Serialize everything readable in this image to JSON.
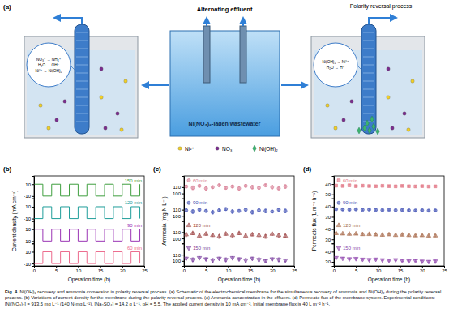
{
  "figure": {
    "caption_label": "Fig. 4.",
    "caption": "Ni(OH)₂ recovery and ammonia conversion in polarity reversal process. (a) Schematic of the electrochemical membrane for the simultaneous recovery of ammonia and Ni(OH)₂ during the polarity reversal process. (b) Variations of current density for the membrane during the polarity reversal process. (c) Ammonia concentration in the effluent. (d) Permeate flux of the membrane system. Experimental conditions: [Ni(NO₃)₂] = 913.5 mg L⁻¹ (140 N-mg L⁻¹), [Na₂SO₄] = 14.2 g L⁻¹, pH = 5.5. The applied current density is 10 mA cm⁻². Initial membrane flux is 40 L m⁻² h⁻¹."
  },
  "panel_a": {
    "label": "(a)",
    "center_title": "Alternating effluent",
    "tank_label": "Ni(NO₃)₂-laden wastewater",
    "right_title": "Polarity reversal process",
    "left_callout": [
      "NO₃⁻ → NH₄⁺",
      "H₂O → OH⁻",
      "Ni²⁺ → Ni(OH)₂"
    ],
    "right_callout": [
      "Ni(OH)₂ → Ni²⁺",
      "H₂O → H⁺"
    ],
    "legend": [
      "Ni²⁺",
      "NO₃⁻",
      "Ni(OH)₂"
    ]
  },
  "chart_data": [
    {
      "type": "line",
      "label": "(b)",
      "xlabel": "Operation time (h)",
      "ylabel": "Current density (mA cm⁻²)",
      "xlim": [
        0,
        25
      ],
      "xticks": [
        0,
        5,
        10,
        15,
        20,
        25
      ],
      "line_style": "step",
      "subplots": [
        {
          "ylim": [
            -14,
            24
          ],
          "yticks": [
            -10,
            10
          ],
          "series": [
            {
              "name": "150 min",
              "color": "#3f9f3f",
              "x": [
                0,
                2,
                4,
                6,
                8,
                10,
                12,
                14,
                16,
                18,
                20,
                22,
                24
              ],
              "values": [
                10,
                -10,
                10,
                -10,
                10,
                -10,
                10,
                -10,
                10,
                -10,
                10,
                -10,
                10
              ]
            }
          ]
        },
        {
          "ylim": [
            -14,
            24
          ],
          "yticks": [
            -10,
            10
          ],
          "series": [
            {
              "name": "120 min",
              "color": "#1f9e9a",
              "x": [
                0,
                2,
                4,
                6,
                8,
                10,
                12,
                14,
                16,
                18,
                20,
                22,
                24
              ],
              "values": [
                -10,
                10,
                -10,
                10,
                -10,
                10,
                -10,
                10,
                -10,
                10,
                -10,
                10,
                -10
              ]
            }
          ]
        },
        {
          "ylim": [
            -14,
            24
          ],
          "yticks": [
            -10,
            10
          ],
          "series": [
            {
              "name": "90 min",
              "color": "#9b35b5",
              "x": [
                0,
                2,
                4,
                6,
                8,
                10,
                12,
                14,
                16,
                18,
                20,
                22,
                24
              ],
              "values": [
                10,
                -10,
                10,
                -10,
                10,
                -10,
                10,
                -10,
                10,
                -10,
                10,
                -10,
                10
              ]
            }
          ]
        },
        {
          "ylim": [
            -14,
            24
          ],
          "yticks": [
            -10,
            10
          ],
          "series": [
            {
              "name": "60 min",
              "color": "#ec6a8c",
              "x": [
                0,
                2,
                4,
                6,
                8,
                10,
                12,
                14,
                16,
                18,
                20,
                22,
                24
              ],
              "values": [
                -10,
                10,
                -10,
                10,
                -10,
                10,
                -10,
                10,
                -10,
                10,
                -10,
                10,
                -10
              ]
            }
          ]
        }
      ]
    },
    {
      "type": "scatter",
      "label": "(c)",
      "xlabel": "Operation time (h)",
      "ylabel": "Ammonia (mg-N L⁻¹)",
      "xlim": [
        0,
        25
      ],
      "xticks": [
        0,
        5,
        10,
        15,
        20,
        25
      ],
      "subplots": [
        {
          "ylim": [
            92,
            128
          ],
          "yticks": [
            100,
            110
          ],
          "series": [
            {
              "name": "60 min",
              "color": "#d77a92",
              "marker": "circle",
              "x": [
                0.5,
                2,
                3.5,
                5,
                6.5,
                8,
                9.5,
                11,
                12.5,
                14,
                15.5,
                17,
                18.5,
                20,
                21.5,
                23
              ],
              "values": [
                111,
                109,
                112,
                108,
                110,
                113,
                109,
                111,
                108,
                112,
                110,
                109,
                113,
                110,
                108,
                111
              ],
              "errors": [
                2,
                3,
                2,
                3,
                2,
                2,
                2,
                2,
                3,
                2,
                3,
                2,
                2,
                3,
                2,
                3
              ]
            }
          ]
        },
        {
          "ylim": [
            92,
            128
          ],
          "yticks": [
            100,
            110
          ],
          "series": [
            {
              "name": "90 min",
              "color": "#3f51b5",
              "marker": "circle",
              "x": [
                0.5,
                2,
                3.5,
                5,
                6.5,
                8,
                9.5,
                11,
                12.5,
                14,
                15.5,
                17,
                18.5,
                20,
                21.5,
                23
              ],
              "values": [
                109,
                107,
                110,
                108,
                106,
                109,
                111,
                107,
                108,
                110,
                106,
                109,
                108,
                107,
                110,
                108
              ],
              "errors": [
                2,
                3,
                2,
                2,
                3,
                2,
                2,
                3,
                2,
                2,
                3,
                2,
                3,
                2,
                2,
                3
              ]
            }
          ]
        },
        {
          "ylim": [
            92,
            128
          ],
          "yticks": [
            100,
            110
          ],
          "series": [
            {
              "name": "120 min",
              "color": "#a04848",
              "marker": "triangle",
              "x": [
                0.5,
                2,
                3.5,
                5,
                6.5,
                8,
                9.5,
                11,
                12.5,
                14,
                15.5,
                17,
                18.5,
                20,
                21.5,
                23
              ],
              "values": [
                106,
                108,
                104,
                107,
                105,
                103,
                107,
                105,
                108,
                104,
                106,
                105,
                103,
                107,
                105,
                104
              ],
              "errors": [
                3,
                2,
                3,
                2,
                2,
                3,
                2,
                3,
                2,
                3,
                2,
                2,
                3,
                2,
                3,
                2
              ]
            }
          ]
        },
        {
          "ylim": [
            92,
            128
          ],
          "yticks": [
            100,
            110
          ],
          "series": [
            {
              "name": "150 min",
              "color": "#7b3fa0",
              "marker": "triangle-down",
              "x": [
                0.5,
                2,
                3.5,
                5,
                6.5,
                8,
                9.5,
                11,
                12.5,
                14,
                15.5,
                17,
                18.5,
                20,
                21.5,
                23
              ],
              "values": [
                104,
                102,
                105,
                103,
                101,
                104,
                102,
                105,
                103,
                101,
                104,
                102,
                100,
                103,
                102,
                101
              ],
              "errors": [
                2,
                3,
                2,
                2,
                3,
                2,
                3,
                2,
                2,
                3,
                2,
                3,
                2,
                2,
                3,
                2
              ]
            }
          ]
        }
      ]
    },
    {
      "type": "scatter",
      "label": "(d)",
      "xlabel": "Operation time (h)",
      "ylabel": "Permeate flux (L m⁻² h⁻¹)",
      "xlim": [
        0,
        25
      ],
      "xticks": [
        0,
        5,
        10,
        15,
        20,
        25
      ],
      "subplots": [
        {
          "ylim": [
            26,
            48
          ],
          "yticks": [
            30,
            40
          ],
          "series": [
            {
              "name": "60 min",
              "color": "#e0707f",
              "marker": "square",
              "x": [
                0.5,
                2,
                3.5,
                5,
                6.5,
                8,
                9.5,
                11,
                12.5,
                14,
                15.5,
                17,
                18.5,
                20,
                21.5,
                23
              ],
              "values": [
                38.5,
                38.2,
                38.8,
                38.0,
                38.4,
                38.1,
                37.9,
                38.3,
                38.0,
                37.8,
                38.2,
                37.9,
                37.7,
                38.0,
                37.6,
                37.8
              ],
              "errors": [
                0.8,
                0.7,
                0.8,
                0.9,
                0.7,
                0.8,
                0.8,
                0.7,
                0.9,
                0.8,
                0.7,
                0.8,
                0.9,
                0.8,
                0.7,
                0.8
              ]
            }
          ]
        },
        {
          "ylim": [
            26,
            48
          ],
          "yticks": [
            30,
            40
          ],
          "series": [
            {
              "name": "90 min",
              "color": "#3f51b5",
              "marker": "circle",
              "x": [
                0.5,
                2,
                3.5,
                5,
                6.5,
                8,
                9.5,
                11,
                12.5,
                14,
                15.5,
                17,
                18.5,
                20,
                21.5,
                23
              ],
              "values": [
                37.5,
                37.2,
                37.0,
                37.3,
                36.9,
                37.1,
                36.8,
                36.6,
                36.9,
                36.5,
                36.7,
                36.4,
                36.2,
                36.5,
                36.1,
                36.3
              ],
              "errors": [
                0.8,
                0.9,
                0.7,
                0.8,
                0.8,
                0.7,
                0.9,
                0.8,
                0.7,
                0.8,
                0.9,
                0.8,
                0.7,
                0.8,
                0.8,
                0.7
              ]
            }
          ]
        },
        {
          "ylim": [
            26,
            48
          ],
          "yticks": [
            30,
            40
          ],
          "series": [
            {
              "name": "120 min",
              "color": "#a86a4a",
              "marker": "triangle",
              "x": [
                0.5,
                2,
                3.5,
                5,
                6.5,
                8,
                9.5,
                11,
                12.5,
                14,
                15.5,
                17,
                18.5,
                20,
                21.5,
                23
              ],
              "values": [
                35.8,
                35.4,
                35.1,
                35.3,
                34.8,
                34.9,
                34.5,
                34.2,
                34.6,
                34.0,
                34.3,
                33.9,
                33.6,
                33.8,
                33.4,
                33.5
              ],
              "errors": [
                0.9,
                0.8,
                0.8,
                0.7,
                0.9,
                0.8,
                0.8,
                0.9,
                0.7,
                0.8,
                0.8,
                0.9,
                0.8,
                0.7,
                0.8,
                0.9
              ]
            }
          ]
        },
        {
          "ylim": [
            26,
            48
          ],
          "yticks": [
            30,
            40
          ],
          "series": [
            {
              "name": "150 min",
              "color": "#8e44ad",
              "marker": "triangle-down",
              "x": [
                0.5,
                2,
                3.5,
                5,
                6.5,
                8,
                9.5,
                11,
                12.5,
                14,
                15.5,
                17,
                18.5,
                20,
                21.5,
                23
              ],
              "values": [
                34.0,
                33.4,
                32.8,
                33.1,
                32.4,
                32.0,
                32.5,
                31.8,
                31.4,
                31.9,
                31.2,
                30.8,
                31.1,
                30.5,
                30.2,
                30.6
              ],
              "errors": [
                0.9,
                0.8,
                0.9,
                0.8,
                0.8,
                0.9,
                0.8,
                0.9,
                0.8,
                0.8,
                0.9,
                0.8,
                0.9,
                0.8,
                0.8,
                0.9
              ]
            }
          ]
        }
      ]
    }
  ]
}
